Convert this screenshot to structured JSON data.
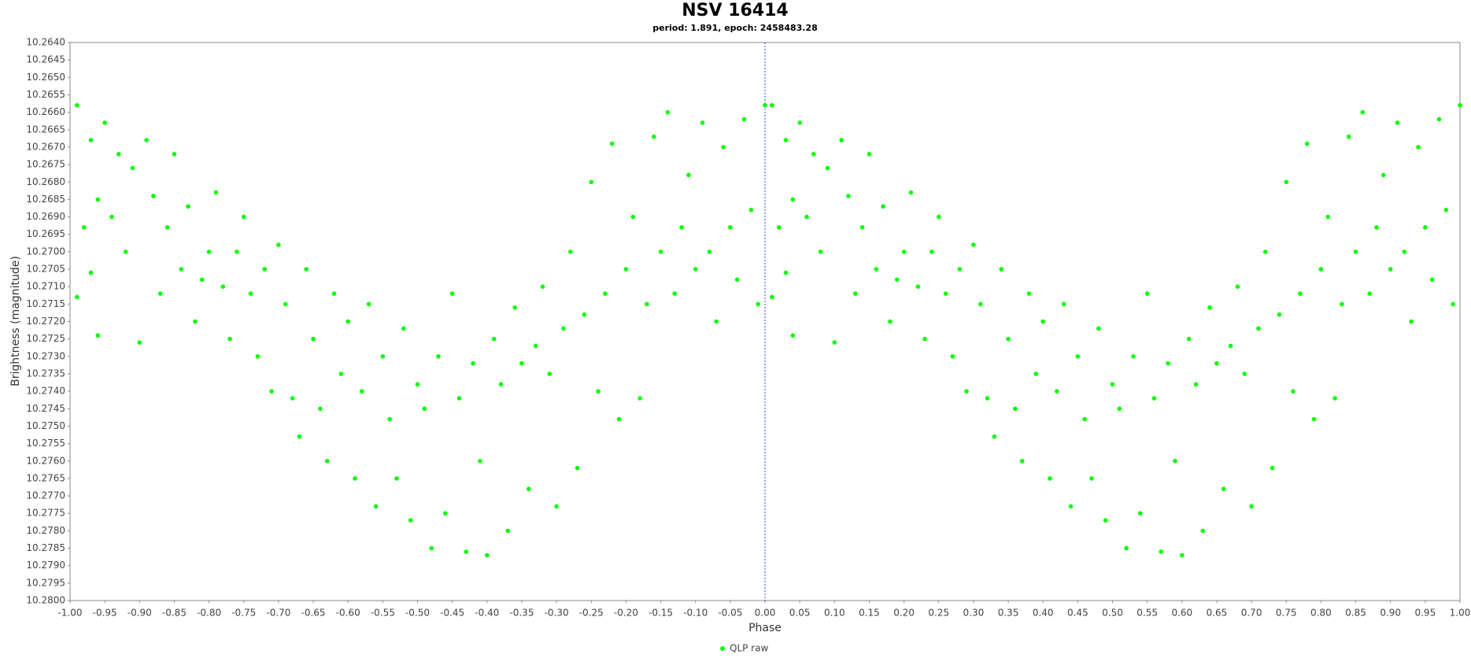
{
  "chart_data": {
    "type": "scatter",
    "title": "NSV 16414",
    "subtitle": "period: 1.891, epoch: 2458483.28",
    "x_label": "Phase",
    "y_label": "Brightness (magnitude)",
    "xlim": [
      -1,
      1
    ],
    "ylim": [
      10.28,
      10.264
    ],
    "grid": false,
    "vline": 0,
    "legend": "bottom",
    "xticks": [
      {
        "value": -1,
        "label": "-1.00"
      },
      -0.95,
      {
        "value": -0.9,
        "label": "-0.90"
      },
      -0.85,
      {
        "value": -0.8,
        "label": "-0.80"
      },
      -0.75,
      {
        "value": -0.7,
        "label": "-0.70"
      },
      -0.65,
      {
        "value": -0.6,
        "label": "-0.60"
      },
      -0.55,
      {
        "value": -0.5,
        "label": "-0.50"
      },
      -0.45,
      {
        "value": -0.4,
        "label": "-0.40"
      },
      -0.35,
      {
        "value": -0.3,
        "label": "-0.30"
      },
      -0.25,
      {
        "value": -0.2,
        "label": "-0.20"
      },
      -0.15,
      {
        "value": -0.1,
        "label": "-0.10"
      },
      -0.05,
      {
        "value": 0,
        "label": "0.00"
      },
      0.05,
      {
        "value": 0.1,
        "label": "0.10"
      },
      0.15,
      {
        "value": 0.2,
        "label": "0.20"
      },
      0.25,
      {
        "value": 0.3,
        "label": "0.30"
      },
      0.35,
      {
        "value": 0.4,
        "label": "0.40"
      },
      0.45,
      {
        "value": 0.5,
        "label": "0.50"
      },
      0.55,
      {
        "value": 0.6,
        "label": "0.60"
      },
      0.65,
      {
        "value": 0.7,
        "label": "0.70"
      },
      0.75,
      {
        "value": 0.8,
        "label": "0.80"
      },
      0.85,
      {
        "value": 0.9,
        "label": "0.90"
      },
      0.95,
      {
        "value": 1,
        "label": "1.00"
      }
    ],
    "yticks": [
      {
        "value": 10.264,
        "label": "10.2640"
      },
      10.2645,
      {
        "value": 10.265,
        "label": "10.2650"
      },
      10.2655,
      {
        "value": 10.266,
        "label": "10.2660"
      },
      10.2665,
      {
        "value": 10.267,
        "label": "10.2670"
      },
      10.2675,
      {
        "value": 10.268,
        "label": "10.2680"
      },
      10.2685,
      {
        "value": 10.269,
        "label": "10.2690"
      },
      10.2695,
      {
        "value": 10.27,
        "label": "10.2700"
      },
      10.2705,
      {
        "value": 10.271,
        "label": "10.2710"
      },
      10.2715,
      {
        "value": 10.272,
        "label": "10.2720"
      },
      10.2725,
      {
        "value": 10.273,
        "label": "10.2730"
      },
      10.2735,
      {
        "value": 10.274,
        "label": "10.2740"
      },
      10.2745,
      {
        "value": 10.275,
        "label": "10.2750"
      },
      10.2755,
      {
        "value": 10.276,
        "label": "10.2760"
      },
      10.2765,
      {
        "value": 10.277,
        "label": "10.2770"
      },
      10.2775,
      {
        "value": 10.278,
        "label": "10.2780"
      },
      10.2785,
      {
        "value": 10.279,
        "label": "10.2790"
      },
      10.2795,
      {
        "value": 10.28,
        "label": "10.2800"
      }
    ],
    "series": [
      {
        "name": "QLP raw",
        "color": "#00ff00",
        "x": [
          -0.99,
          -0.99,
          -0.98,
          -0.97,
          -0.97,
          -0.96,
          -0.96,
          -0.95,
          -0.94,
          -0.93,
          -0.92,
          -0.91,
          -0.9,
          -0.89,
          -0.88,
          -0.87,
          -0.86,
          -0.85,
          -0.84,
          -0.83,
          -0.82,
          -0.81,
          -0.8,
          -0.79,
          -0.78,
          -0.77,
          -0.76,
          -0.75,
          -0.74,
          -0.73,
          -0.72,
          -0.71,
          -0.7,
          -0.69,
          -0.68,
          -0.67,
          -0.66,
          -0.65,
          -0.64,
          -0.63,
          -0.62,
          -0.61,
          -0.6,
          -0.59,
          -0.58,
          -0.57,
          -0.56,
          -0.55,
          -0.54,
          -0.53,
          -0.52,
          -0.51,
          -0.5,
          -0.49,
          -0.48,
          -0.47,
          -0.46,
          -0.45,
          -0.44,
          -0.43,
          -0.42,
          -0.41,
          -0.4,
          -0.39,
          -0.38,
          -0.37,
          -0.36,
          -0.35,
          -0.34,
          -0.33,
          -0.32,
          -0.31,
          -0.3,
          -0.29,
          -0.28,
          -0.27,
          -0.26,
          -0.25,
          -0.24,
          -0.23,
          -0.22,
          -0.21,
          -0.2,
          -0.19,
          -0.18,
          -0.17,
          -0.16,
          -0.15,
          -0.14,
          -0.13,
          -0.12,
          -0.11,
          -0.1,
          -0.09,
          -0.08,
          -0.07,
          -0.06,
          -0.05,
          -0.04,
          -0.03,
          -0.02,
          -0.01,
          0,
          0.01,
          0.01,
          0.02,
          0.03,
          0.03,
          0.04,
          0.04,
          0.05,
          0.06,
          0.07,
          0.08,
          0.09,
          0.1,
          0.11,
          0.12,
          0.13,
          0.14,
          0.15,
          0.16,
          0.17,
          0.18,
          0.19,
          0.2,
          0.21,
          0.22,
          0.23,
          0.24,
          0.25,
          0.26,
          0.27,
          0.28,
          0.29,
          0.3,
          0.31,
          0.32,
          0.33,
          0.34,
          0.35,
          0.36,
          0.37,
          0.38,
          0.39,
          0.4,
          0.41,
          0.42,
          0.43,
          0.44,
          0.45,
          0.46,
          0.47,
          0.48,
          0.49,
          0.5,
          0.51,
          0.52,
          0.53,
          0.54,
          0.55,
          0.56,
          0.57,
          0.58,
          0.59,
          0.6,
          0.61,
          0.62,
          0.63,
          0.64,
          0.65,
          0.66,
          0.67,
          0.68,
          0.69,
          0.7,
          0.71,
          0.72,
          0.73,
          0.74,
          0.75,
          0.76,
          0.77,
          0.78,
          0.79,
          0.8,
          0.81,
          0.82,
          0.83,
          0.84,
          0.85,
          0.86,
          0.87,
          0.88,
          0.89,
          0.9,
          0.91,
          0.92,
          0.93,
          0.94,
          0.95,
          0.96,
          0.97,
          0.98,
          0.99,
          1
        ],
        "values": [
          10.2658,
          10.2713,
          10.2693,
          10.2668,
          10.2706,
          10.2685,
          10.2724,
          10.2663,
          10.269,
          10.2672,
          10.27,
          10.2676,
          10.2726,
          10.2668,
          10.2684,
          10.2712,
          10.2693,
          10.2672,
          10.2705,
          10.2687,
          10.272,
          10.2708,
          10.27,
          10.2683,
          10.271,
          10.2725,
          10.27,
          10.269,
          10.2712,
          10.273,
          10.2705,
          10.274,
          10.2698,
          10.2715,
          10.2742,
          10.2753,
          10.2705,
          10.2725,
          10.2745,
          10.276,
          10.2712,
          10.2735,
          10.272,
          10.2765,
          10.274,
          10.2715,
          10.2773,
          10.273,
          10.2748,
          10.2765,
          10.2722,
          10.2777,
          10.2738,
          10.2745,
          10.2785,
          10.273,
          10.2775,
          10.2712,
          10.2742,
          10.2786,
          10.2732,
          10.276,
          10.2787,
          10.2725,
          10.2738,
          10.278,
          10.2716,
          10.2732,
          10.2768,
          10.2727,
          10.271,
          10.2735,
          10.2773,
          10.2722,
          10.27,
          10.2762,
          10.2718,
          10.268,
          10.274,
          10.2712,
          10.2669,
          10.2748,
          10.2705,
          10.269,
          10.2742,
          10.2715,
          10.2667,
          10.27,
          10.266,
          10.2712,
          10.2693,
          10.2678,
          10.2705,
          10.2663,
          10.27,
          10.272,
          10.267,
          10.2693,
          10.2708,
          10.2662,
          10.2688,
          10.2715,
          10.2658,
          10.2658,
          10.2713,
          10.2693,
          10.2668,
          10.2706,
          10.2685,
          10.2724,
          10.2663,
          10.269,
          10.2672,
          10.27,
          10.2676,
          10.2726,
          10.2668,
          10.2684,
          10.2712,
          10.2693,
          10.2672,
          10.2705,
          10.2687,
          10.272,
          10.2708,
          10.27,
          10.2683,
          10.271,
          10.2725,
          10.27,
          10.269,
          10.2712,
          10.273,
          10.2705,
          10.274,
          10.2698,
          10.2715,
          10.2742,
          10.2753,
          10.2705,
          10.2725,
          10.2745,
          10.276,
          10.2712,
          10.2735,
          10.272,
          10.2765,
          10.274,
          10.2715,
          10.2773,
          10.273,
          10.2748,
          10.2765,
          10.2722,
          10.2777,
          10.2738,
          10.2745,
          10.2785,
          10.273,
          10.2775,
          10.2712,
          10.2742,
          10.2786,
          10.2732,
          10.276,
          10.2787,
          10.2725,
          10.2738,
          10.278,
          10.2716,
          10.2732,
          10.2768,
          10.2727,
          10.271,
          10.2735,
          10.2773,
          10.2722,
          10.27,
          10.2762,
          10.2718,
          10.268,
          10.274,
          10.2712,
          10.2669,
          10.2748,
          10.2705,
          10.269,
          10.2742,
          10.2715,
          10.2667,
          10.27,
          10.266,
          10.2712,
          10.2693,
          10.2678,
          10.2705,
          10.2663,
          10.27,
          10.272,
          10.267,
          10.2693,
          10.2708,
          10.2662,
          10.2688,
          10.2715,
          10.2658
        ]
      }
    ]
  }
}
